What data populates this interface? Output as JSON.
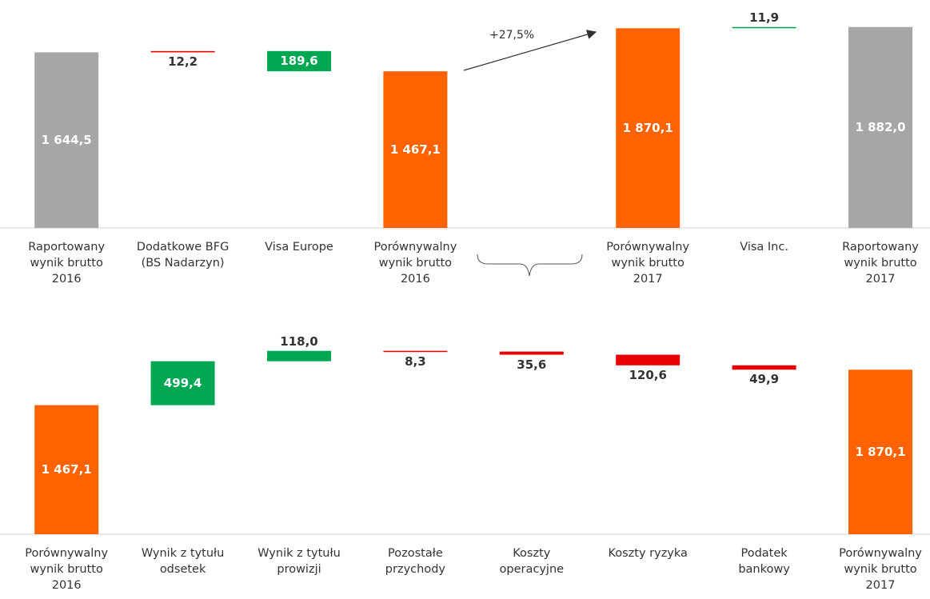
{
  "chart_data": [
    {
      "type": "waterfall",
      "categories": [
        "Raportowany\nwynik brutto\n2016",
        "Dodatkowe BFG\n(BS Nadarzyn)",
        "Visa Europe",
        "Porównywalny\nwynik brutto\n2016",
        null,
        "Porównywalny\nwynik brutto\n2017",
        "Visa Inc.",
        "Raportowany\nwynik brutto\n2017"
      ],
      "measure": [
        "total",
        "relative",
        "relative",
        "total",
        null,
        "total",
        "relative",
        "total"
      ],
      "values": [
        1644.5,
        12.2,
        -189.6,
        1467.1,
        null,
        1870.1,
        11.9,
        1882.0
      ],
      "value_labels": [
        "1 644,5",
        "12,2",
        "189,6",
        "1 467,1",
        null,
        "1 870,1",
        "11,9",
        "1 882,0"
      ],
      "colors": [
        "#a6a6a6",
        "#e60000",
        "#00a651",
        "#ff6200",
        null,
        "#ff6200",
        "#00a651",
        "#a6a6a6"
      ],
      "annotation": "+27,5%",
      "ylim": [
        0,
        2000
      ]
    },
    {
      "type": "waterfall",
      "categories": [
        "Porównywalny\nwynik brutto\n2016",
        "Wynik z tytułu\nodsetek",
        "Wynik z tytułu\nprowizji",
        "Pozostałe\nprzychody",
        "Koszty\noperacyjne",
        "Koszty ryzyka",
        "Podatek\nbankowy",
        "Porównywalny\nwynik brutto\n2017"
      ],
      "measure": [
        "total",
        "relative",
        "relative",
        "relative",
        "relative",
        "relative",
        "relative",
        "total"
      ],
      "values": [
        1467.1,
        499.4,
        118.0,
        -8.3,
        -35.6,
        -120.6,
        -49.9,
        1870.1
      ],
      "value_labels": [
        "1 467,1",
        "499,4",
        "118,0",
        "8,3",
        "35,6",
        "120,6",
        "49,9",
        "1 870,1"
      ],
      "colors": [
        "#ff6200",
        "#00a651",
        "#00a651",
        "#e60000",
        "#e60000",
        "#e60000",
        "#e60000",
        "#ff6200"
      ],
      "ylim": [
        0,
        2200
      ]
    }
  ]
}
